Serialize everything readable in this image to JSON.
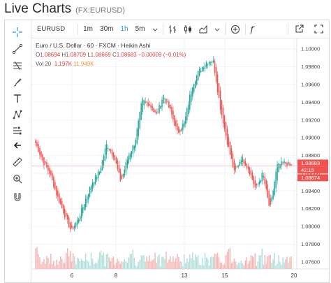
{
  "page": {
    "title": "Live Charts",
    "symbol": "(FX:EURUSD)"
  },
  "toolbar": {
    "symbol": "EURUSD",
    "intervals": [
      "1m",
      "30m",
      "1h",
      "5m"
    ],
    "active_interval": "1h",
    "icons": [
      "bars-style-icon",
      "candles-style-icon",
      "area-style-icon",
      "add-indicator-icon",
      "add-compare-icon",
      "indicators-fx-icon",
      "snapshot-icon",
      "fullscreen-icon"
    ]
  },
  "left_toolbar": {
    "icons": [
      "crosshair-icon",
      "trend-line-icon",
      "fib-tool-icon",
      "brush-icon",
      "text-icon",
      "pattern-icon",
      "forecast-icon",
      "back-arrow-icon",
      "ruler-icon",
      "zoom-in-icon",
      "magnet-icon"
    ]
  },
  "legend": {
    "title": "Euro / U.S. Dollar · 60 · FXCM · Heikin Ashi",
    "o_label": "O",
    "o": "1.08694",
    "h_label": "H",
    "h": "1.08709",
    "l_label": "L",
    "l": "1.08669",
    "c_label": "C",
    "c": "1.08683",
    "change": "−0.00009 (−0.01%)",
    "vol_label": "Vol 20",
    "vol_1": "1.197K",
    "vol_2": "11.949K"
  },
  "price_axis": {
    "ticks": [
      "1.10000",
      "1.09800",
      "1.09600",
      "1.09400",
      "1.09200",
      "1.09000",
      "1.08800",
      "1.08600",
      "1.08400",
      "1.08200",
      "1.08000",
      "1.07800",
      "1.07600"
    ],
    "last_price": "1.08683",
    "countdown": "42:15",
    "line_price": "1.08674"
  },
  "time_axis": {
    "labels": [
      "6",
      "8",
      "13",
      "15",
      "20"
    ]
  },
  "colors": {
    "up": "#26a69a",
    "down": "#ef5350",
    "vol_up": "#b2dfdb",
    "vol_down": "#f5b7b4",
    "tag_green": "#26a69a",
    "tag_red": "#ef5350"
  },
  "chart_data": {
    "type": "candlestick",
    "series_anchor_closes": [
      1.0894,
      1.0874,
      1.086,
      1.0835,
      1.0815,
      1.0795,
      1.0808,
      1.083,
      1.085,
      1.0862,
      1.0893,
      1.088,
      1.085,
      1.0878,
      1.0895,
      1.0942,
      1.0938,
      1.0925,
      1.0948,
      1.093,
      1.0905,
      1.0918,
      1.0958,
      1.0975,
      1.0985,
      1.0988,
      1.0935,
      1.0895,
      1.086,
      1.0878,
      1.0865,
      1.0842,
      1.086,
      1.0818,
      1.0868,
      1.0872,
      1.0868
    ],
    "ylim": [
      1.0752,
      1.1012
    ],
    "last_close": 1.08683
  }
}
